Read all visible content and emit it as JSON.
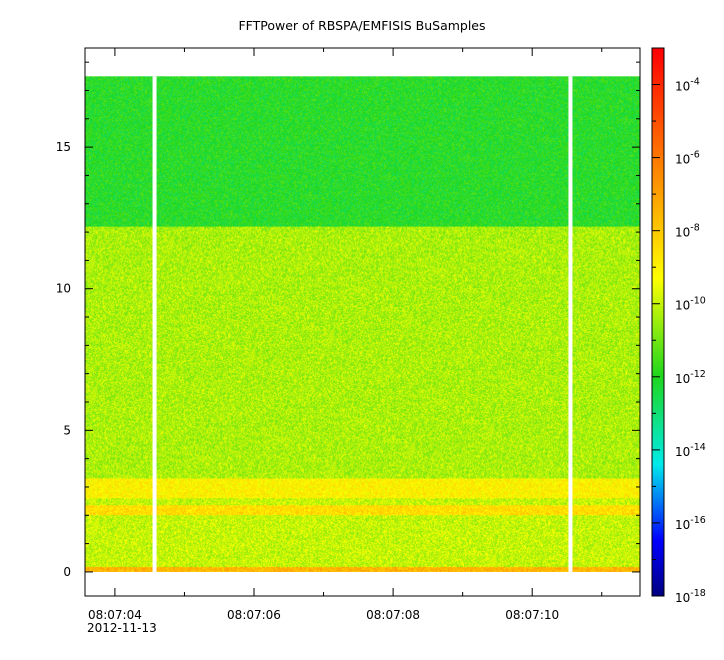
{
  "chart_data": {
    "type": "heatmap",
    "title": "FFTPower of RBSPA/EMFISIS  BuSamples",
    "xlabel": "",
    "ylabel": "",
    "x_tick_labels": [
      "08:07:04",
      "08:07:06",
      "08:07:08",
      "08:07:10"
    ],
    "x_tick_values_s": [
      4,
      6,
      8,
      10
    ],
    "x_date_label": "2012-11-13",
    "xlim_s": [
      3.57,
      11.55
    ],
    "y_tick_labels": [
      "0",
      "5",
      "10",
      "15"
    ],
    "y_tick_values": [
      0,
      5,
      10,
      15
    ],
    "ylim": [
      -0.85,
      18.5
    ],
    "y_data_max": 17.5,
    "gaps_s": [
      4.57,
      10.55
    ],
    "colorbar": {
      "scale": "log",
      "range": [
        1e-18,
        0.001
      ],
      "tick_base": "10",
      "tick_exponents": [
        "-4",
        "-6",
        "-8",
        "-10",
        "-12",
        "-14",
        "-16",
        "-18"
      ],
      "tick_values": [
        -4,
        -6,
        -8,
        -10,
        -12,
        -14,
        -16,
        -18
      ]
    },
    "regions": [
      {
        "from": 0,
        "to": 0.15,
        "log10_power": -7.5
      },
      {
        "from": 0.15,
        "to": 2.0,
        "log10_power": -10
      },
      {
        "from": 2.0,
        "to": 2.35,
        "log10_power": -8.5
      },
      {
        "from": 2.35,
        "to": 2.6,
        "log10_power": -10
      },
      {
        "from": 2.6,
        "to": 3.3,
        "log10_power": -9
      },
      {
        "from": 3.3,
        "to": 12.2,
        "log10_power": -10.3
      },
      {
        "from": 12.2,
        "to": 17.5,
        "log10_power": -12
      }
    ],
    "colors": {
      "low": "#00008b",
      "cyan": "#00e0e0",
      "green": "#22dd22",
      "yellow": "#ffff00",
      "orange": "#ff9900",
      "high": "#ff0000"
    }
  }
}
